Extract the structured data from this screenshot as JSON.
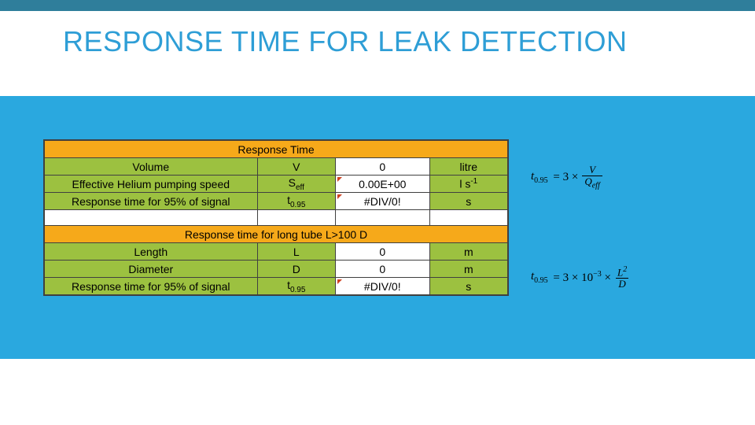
{
  "colors": {
    "top_bar": "#2f7e9b",
    "title": "#2e9ed6",
    "blue_block": "#2aa8df",
    "table_header_bg": "#f6a91a",
    "table_row_bg": "#9cc140",
    "table_border": "#404040",
    "cell_bg_white": "#ffffff"
  },
  "title": "RESPONSE TIME FOR LEAK DETECTION",
  "table1": {
    "header": "Response Time",
    "rows": [
      {
        "label": "Volume",
        "symbol": "V",
        "value": "0",
        "unit": "litre"
      },
      {
        "label": "Effective Helium pumping speed",
        "symbol": "S_eff",
        "value": "0.00E+00",
        "unit": "l s^-1",
        "red_tick": true
      },
      {
        "label": "Response time for 95% of signal",
        "symbol": "t_0.95",
        "value": "#DIV/0!",
        "unit": "s",
        "red_tick": true
      }
    ]
  },
  "table2": {
    "header": "Response time for long tube  L>100 D",
    "rows": [
      {
        "label": "Length",
        "symbol": "L",
        "value": "0",
        "unit": "m"
      },
      {
        "label": "Diameter",
        "symbol": "D",
        "value": "0",
        "unit": "m"
      },
      {
        "label": "Response time for 95% of signal",
        "symbol": "t_0.95",
        "value": "#DIV/0!",
        "unit": "s",
        "red_tick": true
      }
    ]
  },
  "formula1": {
    "lhs": "t_0.95",
    "eq": "= 3 ×",
    "num": "V",
    "den": "Q_eff"
  },
  "formula2": {
    "lhs": "t_0.95",
    "eq": "= 3 × 10^-3 ×",
    "num": "L^2",
    "den": "D"
  }
}
